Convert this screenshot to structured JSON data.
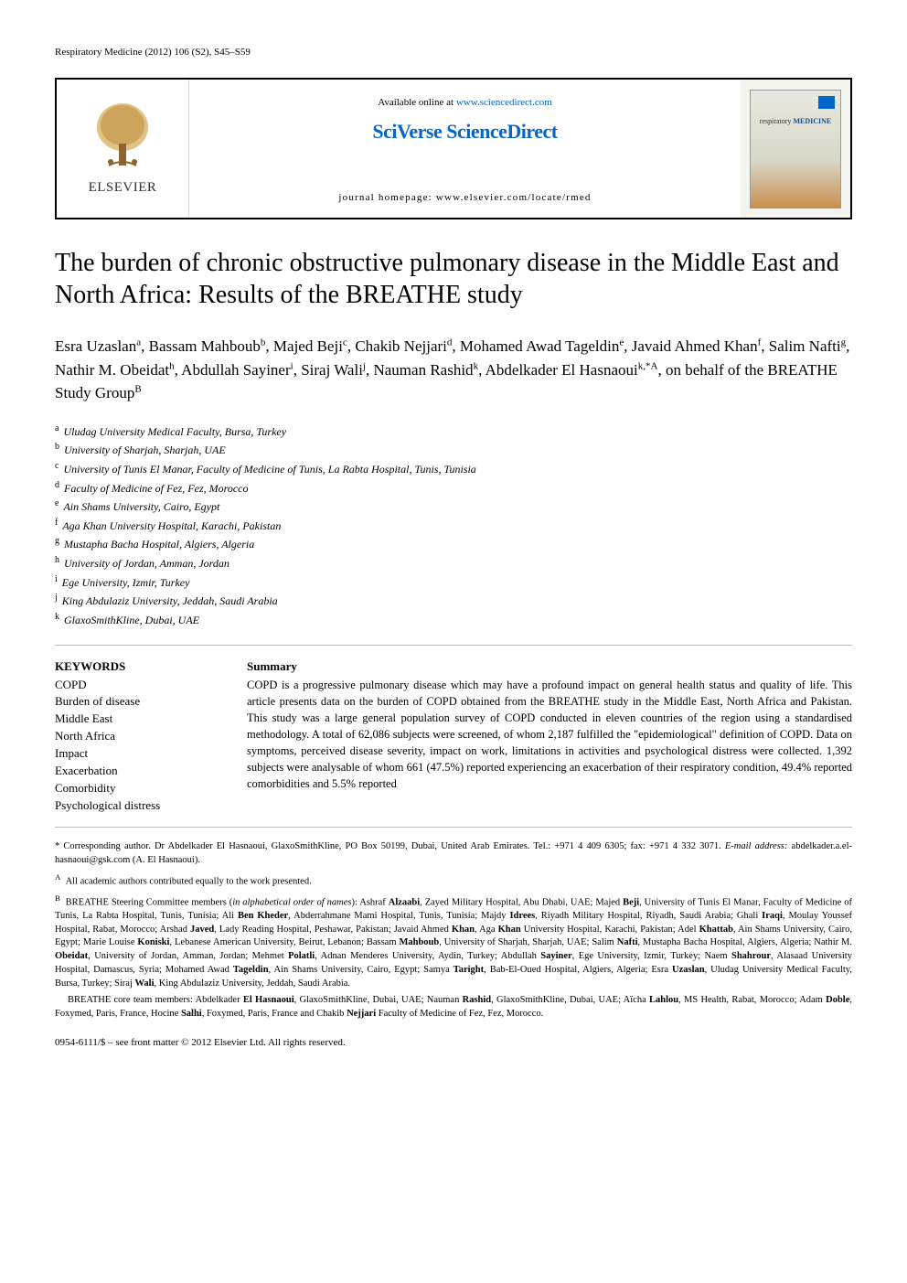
{
  "running_header": "Respiratory Medicine (2012) 106 (S2), S45–S59",
  "banner": {
    "elsevier": "ELSEVIER",
    "available_prefix": "Available online at ",
    "available_link": "www.sciencedirect.com",
    "sciverse": "SciVerse ScienceDirect",
    "homepage": "journal homepage: www.elsevier.com/locate/rmed",
    "cover_text_1": "respiratory",
    "cover_text_2": "MEDICINE"
  },
  "title": "The burden of chronic obstructive pulmonary disease in the Middle East and North Africa: Results of the BREATHE study",
  "authors_html": "Esra Uzaslan<sup>a</sup>, Bassam Mahboub<sup>b</sup>, Majed Beji<sup>c</sup>, Chakib Nejjari<sup>d</sup>, Mohamed Awad Tageldin<sup>e</sup>, Javaid Ahmed Khan<sup>f</sup>, Salim Nafti<sup>g</sup>, Nathir M. Obeidat<sup>h</sup>, Abdullah Sayiner<sup>i</sup>, Siraj Wali<sup>j</sup>, Nauman Rashid<sup>k</sup>, Abdelkader El Hasnaoui<sup>k,*A</sup>, on behalf of the BREATHE Study Group<sup>B</sup>",
  "affiliations": [
    {
      "sup": "a",
      "text": "Uludag University Medical Faculty, Bursa, Turkey"
    },
    {
      "sup": "b",
      "text": "University of Sharjah, Sharjah, UAE"
    },
    {
      "sup": "c",
      "text": "University of Tunis El Manar, Faculty of Medicine of Tunis, La Rabta Hospital, Tunis, Tunisia"
    },
    {
      "sup": "d",
      "text": "Faculty of Medicine of Fez, Fez, Morocco"
    },
    {
      "sup": "e",
      "text": "Ain Shams University, Cairo, Egypt"
    },
    {
      "sup": "f",
      "text": "Aga Khan University Hospital, Karachi, Pakistan"
    },
    {
      "sup": "g",
      "text": "Mustapha Bacha Hospital, Algiers, Algeria"
    },
    {
      "sup": "h",
      "text": "University of Jordan, Amman, Jordan"
    },
    {
      "sup": "i",
      "text": "Ege University, Izmir, Turkey"
    },
    {
      "sup": "j",
      "text": "King Abdulaziz University, Jeddah, Saudi Arabia"
    },
    {
      "sup": "k",
      "text": "GlaxoSmithKline, Dubai, UAE"
    }
  ],
  "keywords": {
    "heading": "KEYWORDS",
    "items": [
      "COPD",
      "Burden of disease",
      "Middle East",
      "North Africa",
      "Impact",
      "Exacerbation",
      "Comorbidity",
      "Psychological distress"
    ]
  },
  "summary": {
    "heading": "Summary",
    "text": "COPD is a progressive pulmonary disease which may have a profound impact on general health status and quality of life. This article presents data on the burden of COPD obtained from the BREATHE study in the Middle East, North Africa and Pakistan. This study was a large general population survey of COPD conducted in eleven countries of the region using a standardised methodology. A total of 62,086 subjects were screened, of whom 2,187 fulfilled the \"epidemiological\" definition of COPD. Data on symptoms, perceived disease severity, impact on work, limitations in activities and psychological distress were collected. 1,392 subjects were analysable of whom 661 (47.5%) reported experiencing an exacerbation of their respiratory condition, 49.4% reported comorbidities and 5.5% reported"
  },
  "footnotes": {
    "corresponding": "* Corresponding author. Dr Abdelkader El Hasnaoui, GlaxoSmithKline, PO Box 50199, Dubai, United Arab Emirates. Tel.: +971 4 409 6305; fax: +971 4 332 3071. E-mail address: abdelkader.a.el-hasnaoui@gsk.com (A. El Hasnaoui).",
    "noteA": "All academic authors contributed equally to the work presented.",
    "noteA_sup": "A",
    "noteB_sup": "B",
    "noteB": "BREATHE Steering Committee members (in alphabetical order of names): Ashraf Alzaabi, Zayed Military Hospital, Abu Dhabi, UAE; Majed Beji, University of Tunis El Manar, Faculty of Medicine of Tunis, La Rabta Hospital, Tunis, Tunisia; Ali Ben Kheder, Abderrahmane Mami Hospital, Tunis, Tunisia; Majdy Idrees, Riyadh Military Hospital, Riyadh, Saudi Arabia; Ghali Iraqi, Moulay Youssef Hospital, Rabat, Morocco; Arshad Javed, Lady Reading Hospital, Peshawar, Pakistan; Javaid Ahmed Khan, Aga Khan University Hospital, Karachi, Pakistan; Adel Khattab, Ain Shams University, Cairo, Egypt; Marie Louise Koniski, Lebanese American University, Beirut, Lebanon; Bassam Mahboub, University of Sharjah, Sharjah, UAE; Salim Nafti, Mustapha Bacha Hospital, Algiers, Algeria; Nathir M. Obeidat, University of Jordan, Amman, Jordan; Mehmet Polatli, Adnan Menderes University, Aydin, Turkey; Abdullah Sayiner, Ege University, Izmir, Turkey; Naem Shahrour, Alasaad University Hospital, Damascus, Syria; Mohamed Awad Tageldin, Ain Shams University, Cairo, Egypt; Samya Taright, Bab-El-Oued Hospital, Algiers, Algeria; Esra Uzaslan, Uludag University Medical Faculty, Bursa, Turkey; Siraj Wali, King Abdulaziz University, Jeddah, Saudi Arabia.",
    "core_team": "BREATHE core team members: Abdelkader El Hasnaoui, GlaxoSmithKline, Dubai, UAE; Nauman Rashid, GlaxoSmithKline, Dubai, UAE; Aïcha Lahlou, MS Health, Rabat, Morocco; Adam Doble, Foxymed, Paris, France, Hocine Salhi, Foxymed, Paris, France and Chakib Nejjari Faculty of Medicine of Fez, Fez, Morocco."
  },
  "copyright": "0954-6111/$ – see front matter © 2012 Elsevier Ltd. All rights reserved.",
  "colors": {
    "link": "#0066cc",
    "border": "#000000",
    "hr": "#bbbbbb"
  }
}
